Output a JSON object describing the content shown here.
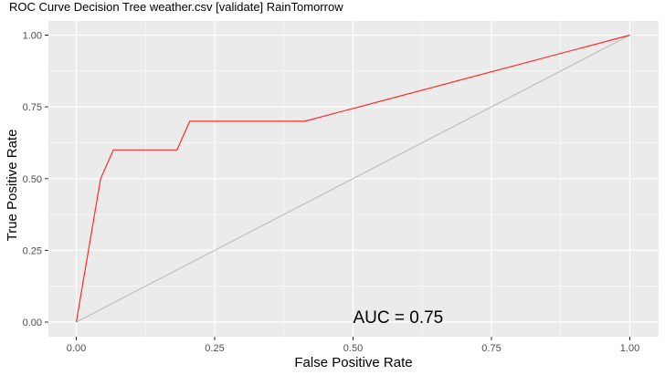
{
  "chart_data": {
    "type": "line",
    "title": "ROC Curve Decision Tree weather.csv [validate] RainTomorrow",
    "xlabel": "False Positive Rate",
    "ylabel": "True Positive Rate",
    "xlim": [
      0,
      1
    ],
    "ylim": [
      0,
      1
    ],
    "x_ticks": [
      0,
      0.25,
      0.5,
      0.75,
      1
    ],
    "y_ticks": [
      0,
      0.25,
      0.5,
      0.75,
      1
    ],
    "x_tick_labels": [
      "0.00",
      "0.25",
      "0.50",
      "0.75",
      "1.00"
    ],
    "y_tick_labels": [
      "0.00",
      "0.25",
      "0.50",
      "0.75",
      "1.00"
    ],
    "grid": true,
    "series": [
      {
        "color": "#FF2A2A",
        "points": [
          [
            0,
            0
          ],
          [
            0.044,
            0.5
          ],
          [
            0.067,
            0.6
          ],
          [
            0.182,
            0.6
          ],
          [
            0.205,
            0.7
          ],
          [
            0.413,
            0.7
          ],
          [
            1,
            1
          ]
        ]
      },
      {
        "color": "#BEBEBE",
        "points": [
          [
            0,
            0
          ],
          [
            1,
            1
          ]
        ]
      }
    ],
    "annotations": [
      {
        "text": "AUC = 0.75",
        "x": 0.5,
        "y": 0.0
      }
    ]
  },
  "colors": {
    "panel_background": "#EBEBEB",
    "grid_major": "#FFFFFF",
    "axis_text": "#4D4D4D",
    "title_text": "#000000"
  }
}
